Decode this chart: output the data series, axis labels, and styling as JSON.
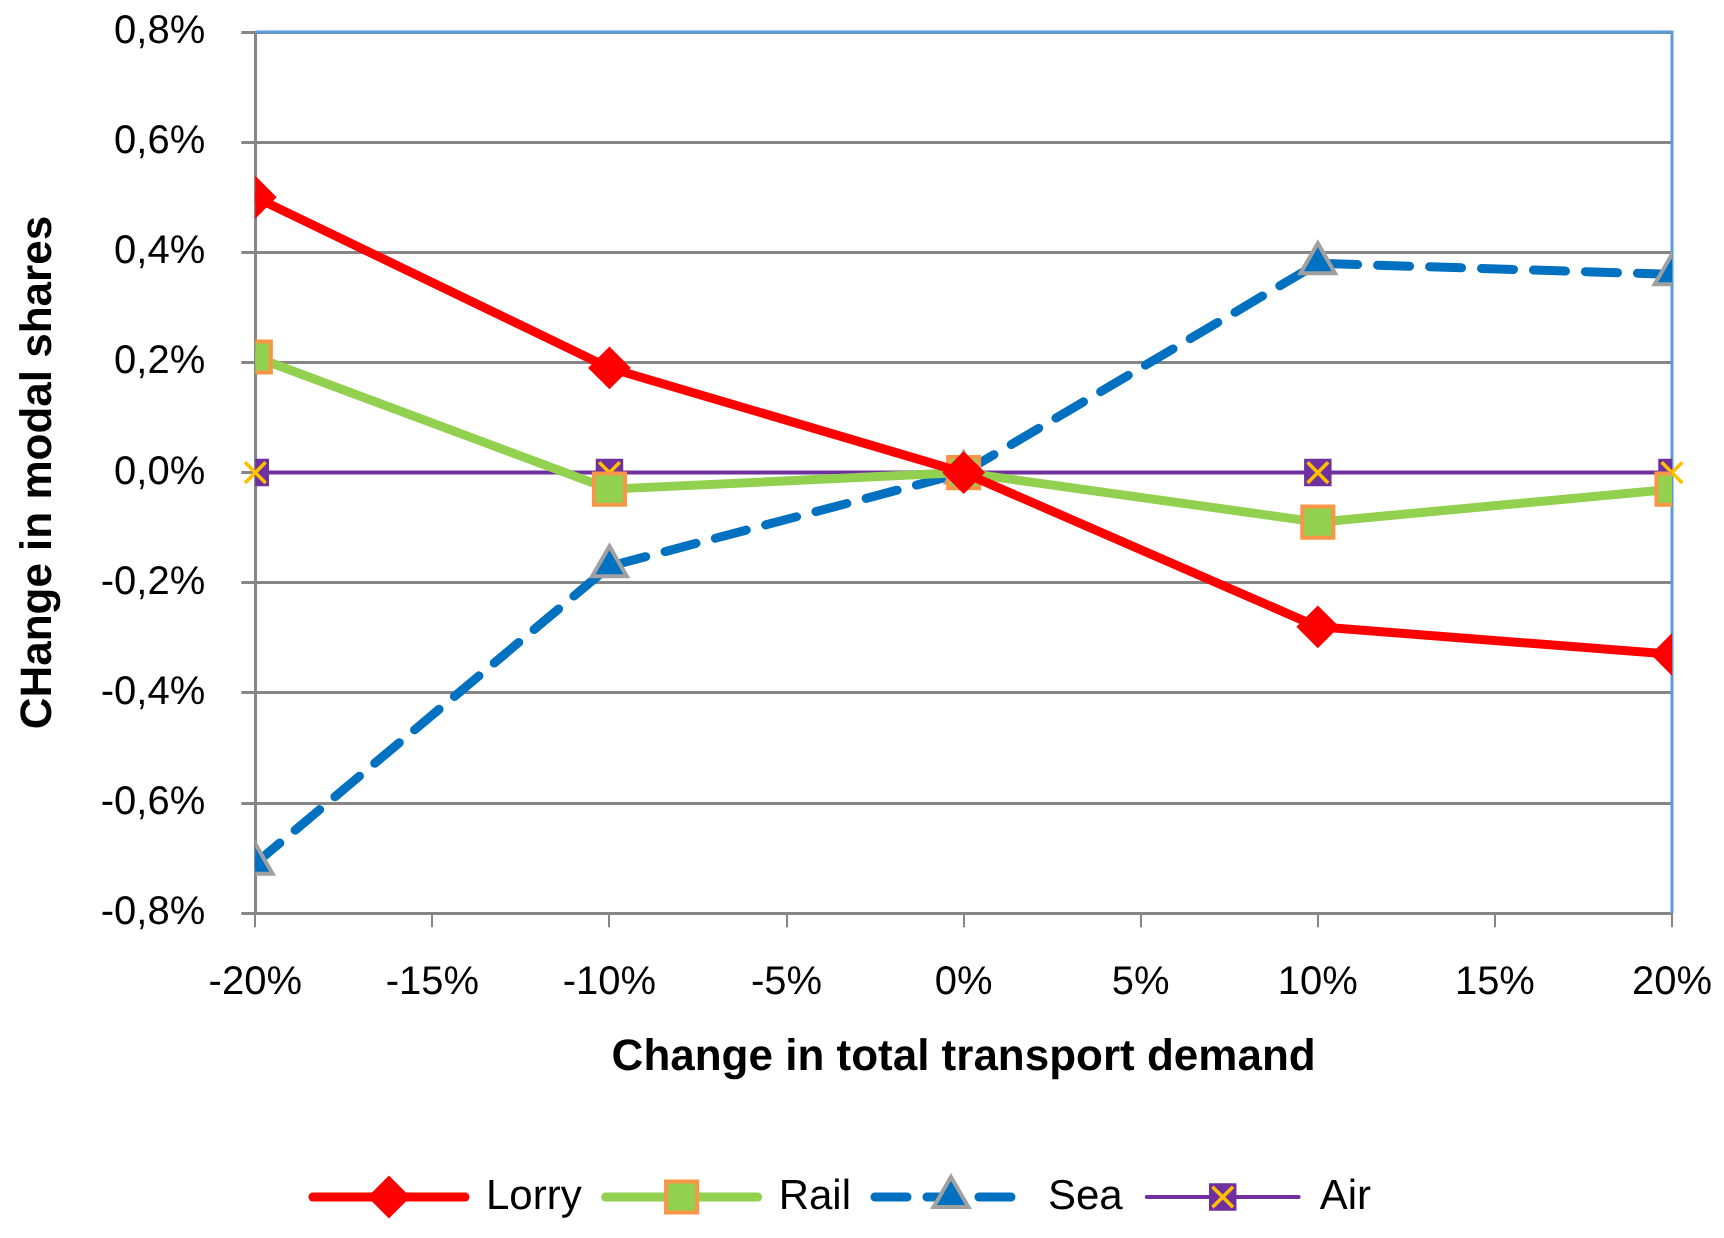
{
  "chart_data": {
    "type": "line",
    "xlabel": "Change in total transport demand",
    "ylabel": "CHange in modal shares",
    "x": [
      -20,
      -10,
      0,
      10,
      20
    ],
    "series": [
      {
        "name": "Lorry",
        "color": "#ff0000",
        "values": [
          0.5,
          0.19,
          0,
          -0.28,
          -0.33
        ],
        "marker": "diamond",
        "line_style": "solid"
      },
      {
        "name": "Rail",
        "color": "#92d050",
        "values": [
          0.21,
          -0.03,
          0,
          -0.09,
          -0.03
        ],
        "marker": "square",
        "line_style": "solid"
      },
      {
        "name": "Sea",
        "color": "#0070c0",
        "values": [
          -0.71,
          -0.17,
          0,
          0.38,
          0.36
        ],
        "marker": "triangle",
        "line_style": "dashed"
      },
      {
        "name": "Air",
        "color": "#7030a0",
        "values": [
          0,
          0,
          0,
          0,
          0
        ],
        "marker": "square",
        "line_style": "solid"
      }
    ],
    "xlim": [
      -20,
      20
    ],
    "xticks": [
      {
        "value": -20,
        "label": "-20%"
      },
      {
        "value": -15,
        "label": "-15%"
      },
      {
        "value": -10,
        "label": "-10%"
      },
      {
        "value": -5,
        "label": "-5%"
      },
      {
        "value": 0,
        "label": "0%"
      },
      {
        "value": 5,
        "label": "5%"
      },
      {
        "value": 10,
        "label": "10%"
      },
      {
        "value": 15,
        "label": "15%"
      },
      {
        "value": 20,
        "label": "20%"
      }
    ],
    "ylim": [
      -0.8,
      0.8
    ],
    "yticks": [
      {
        "value": -0.8,
        "label": "-0,8%"
      },
      {
        "value": -0.6,
        "label": "-0,6%"
      },
      {
        "value": -0.4,
        "label": "-0,4%"
      },
      {
        "value": -0.2,
        "label": "-0,2%"
      },
      {
        "value": 0,
        "label": "0,0%"
      },
      {
        "value": 0.2,
        "label": "0,2%"
      },
      {
        "value": 0.4,
        "label": "0,4%"
      },
      {
        "value": 0.6,
        "label": "0,6%"
      },
      {
        "value": 0.8,
        "label": "0,8%"
      }
    ],
    "grid": "y",
    "legend": "bottom"
  }
}
